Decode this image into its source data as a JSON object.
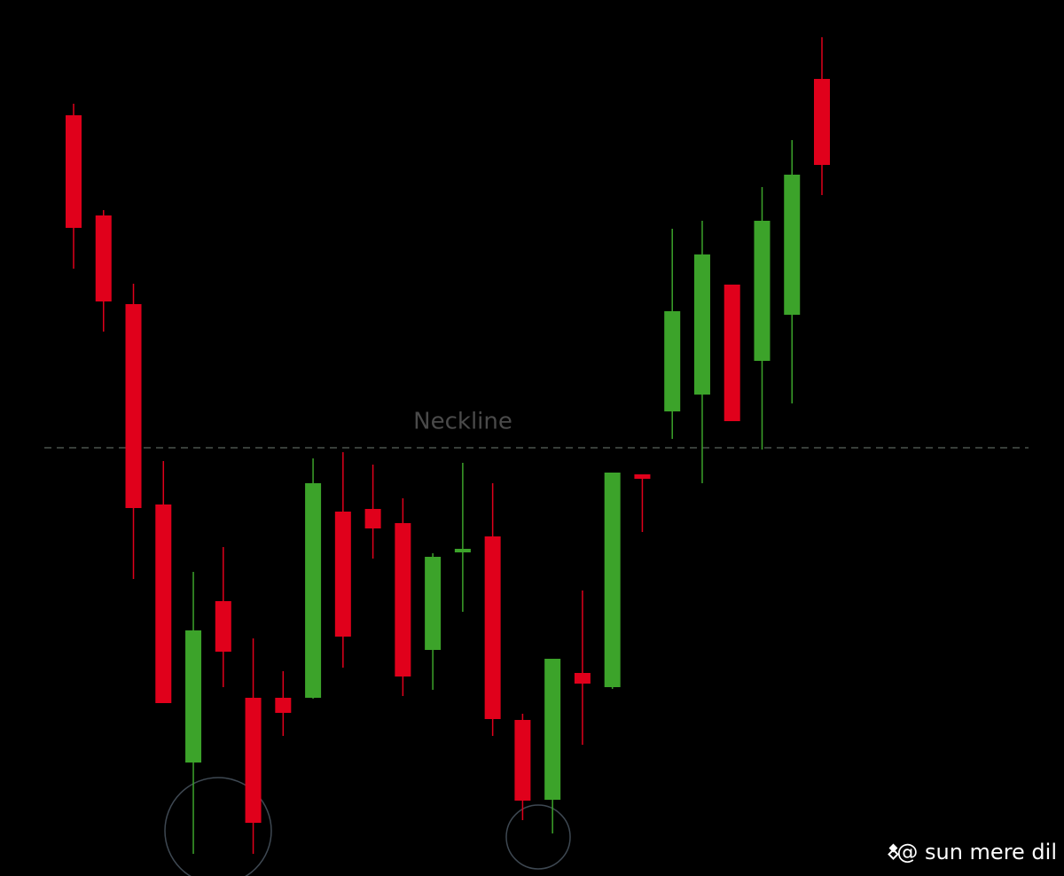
{
  "chart_data": {
    "type": "candlestick",
    "annotation": "Neckline",
    "watermark": "@ sun mere dil",
    "up_color": "#3ca32a",
    "down_color": "#e0001b",
    "ylim": [
      0,
      988
    ],
    "neckline": 483,
    "open": [
      858,
      745,
      645,
      419,
      128,
      310,
      201,
      201,
      201,
      411,
      414,
      398,
      255,
      365,
      383,
      176,
      86,
      229,
      213,
      453,
      524,
      543,
      667,
      581,
      633,
      899
    ],
    "high": [
      871,
      751,
      668,
      468,
      343,
      371,
      268,
      231,
      471,
      478,
      464,
      426,
      364,
      466,
      443,
      183,
      245,
      322,
      455,
      453,
      730,
      739,
      667,
      777,
      830,
      946
    ],
    "low": [
      685,
      614,
      335,
      195,
      25,
      213,
      25,
      158,
      200,
      235,
      358,
      203,
      210,
      298,
      158,
      63,
      48,
      148,
      211,
      388,
      493,
      443,
      513,
      481,
      533,
      768
    ],
    "close": [
      731,
      648,
      415,
      195,
      277,
      253,
      60,
      184,
      443,
      270,
      392,
      225,
      360,
      369,
      177,
      85,
      245,
      217,
      455,
      448,
      637,
      701,
      513,
      739,
      791,
      802
    ]
  }
}
